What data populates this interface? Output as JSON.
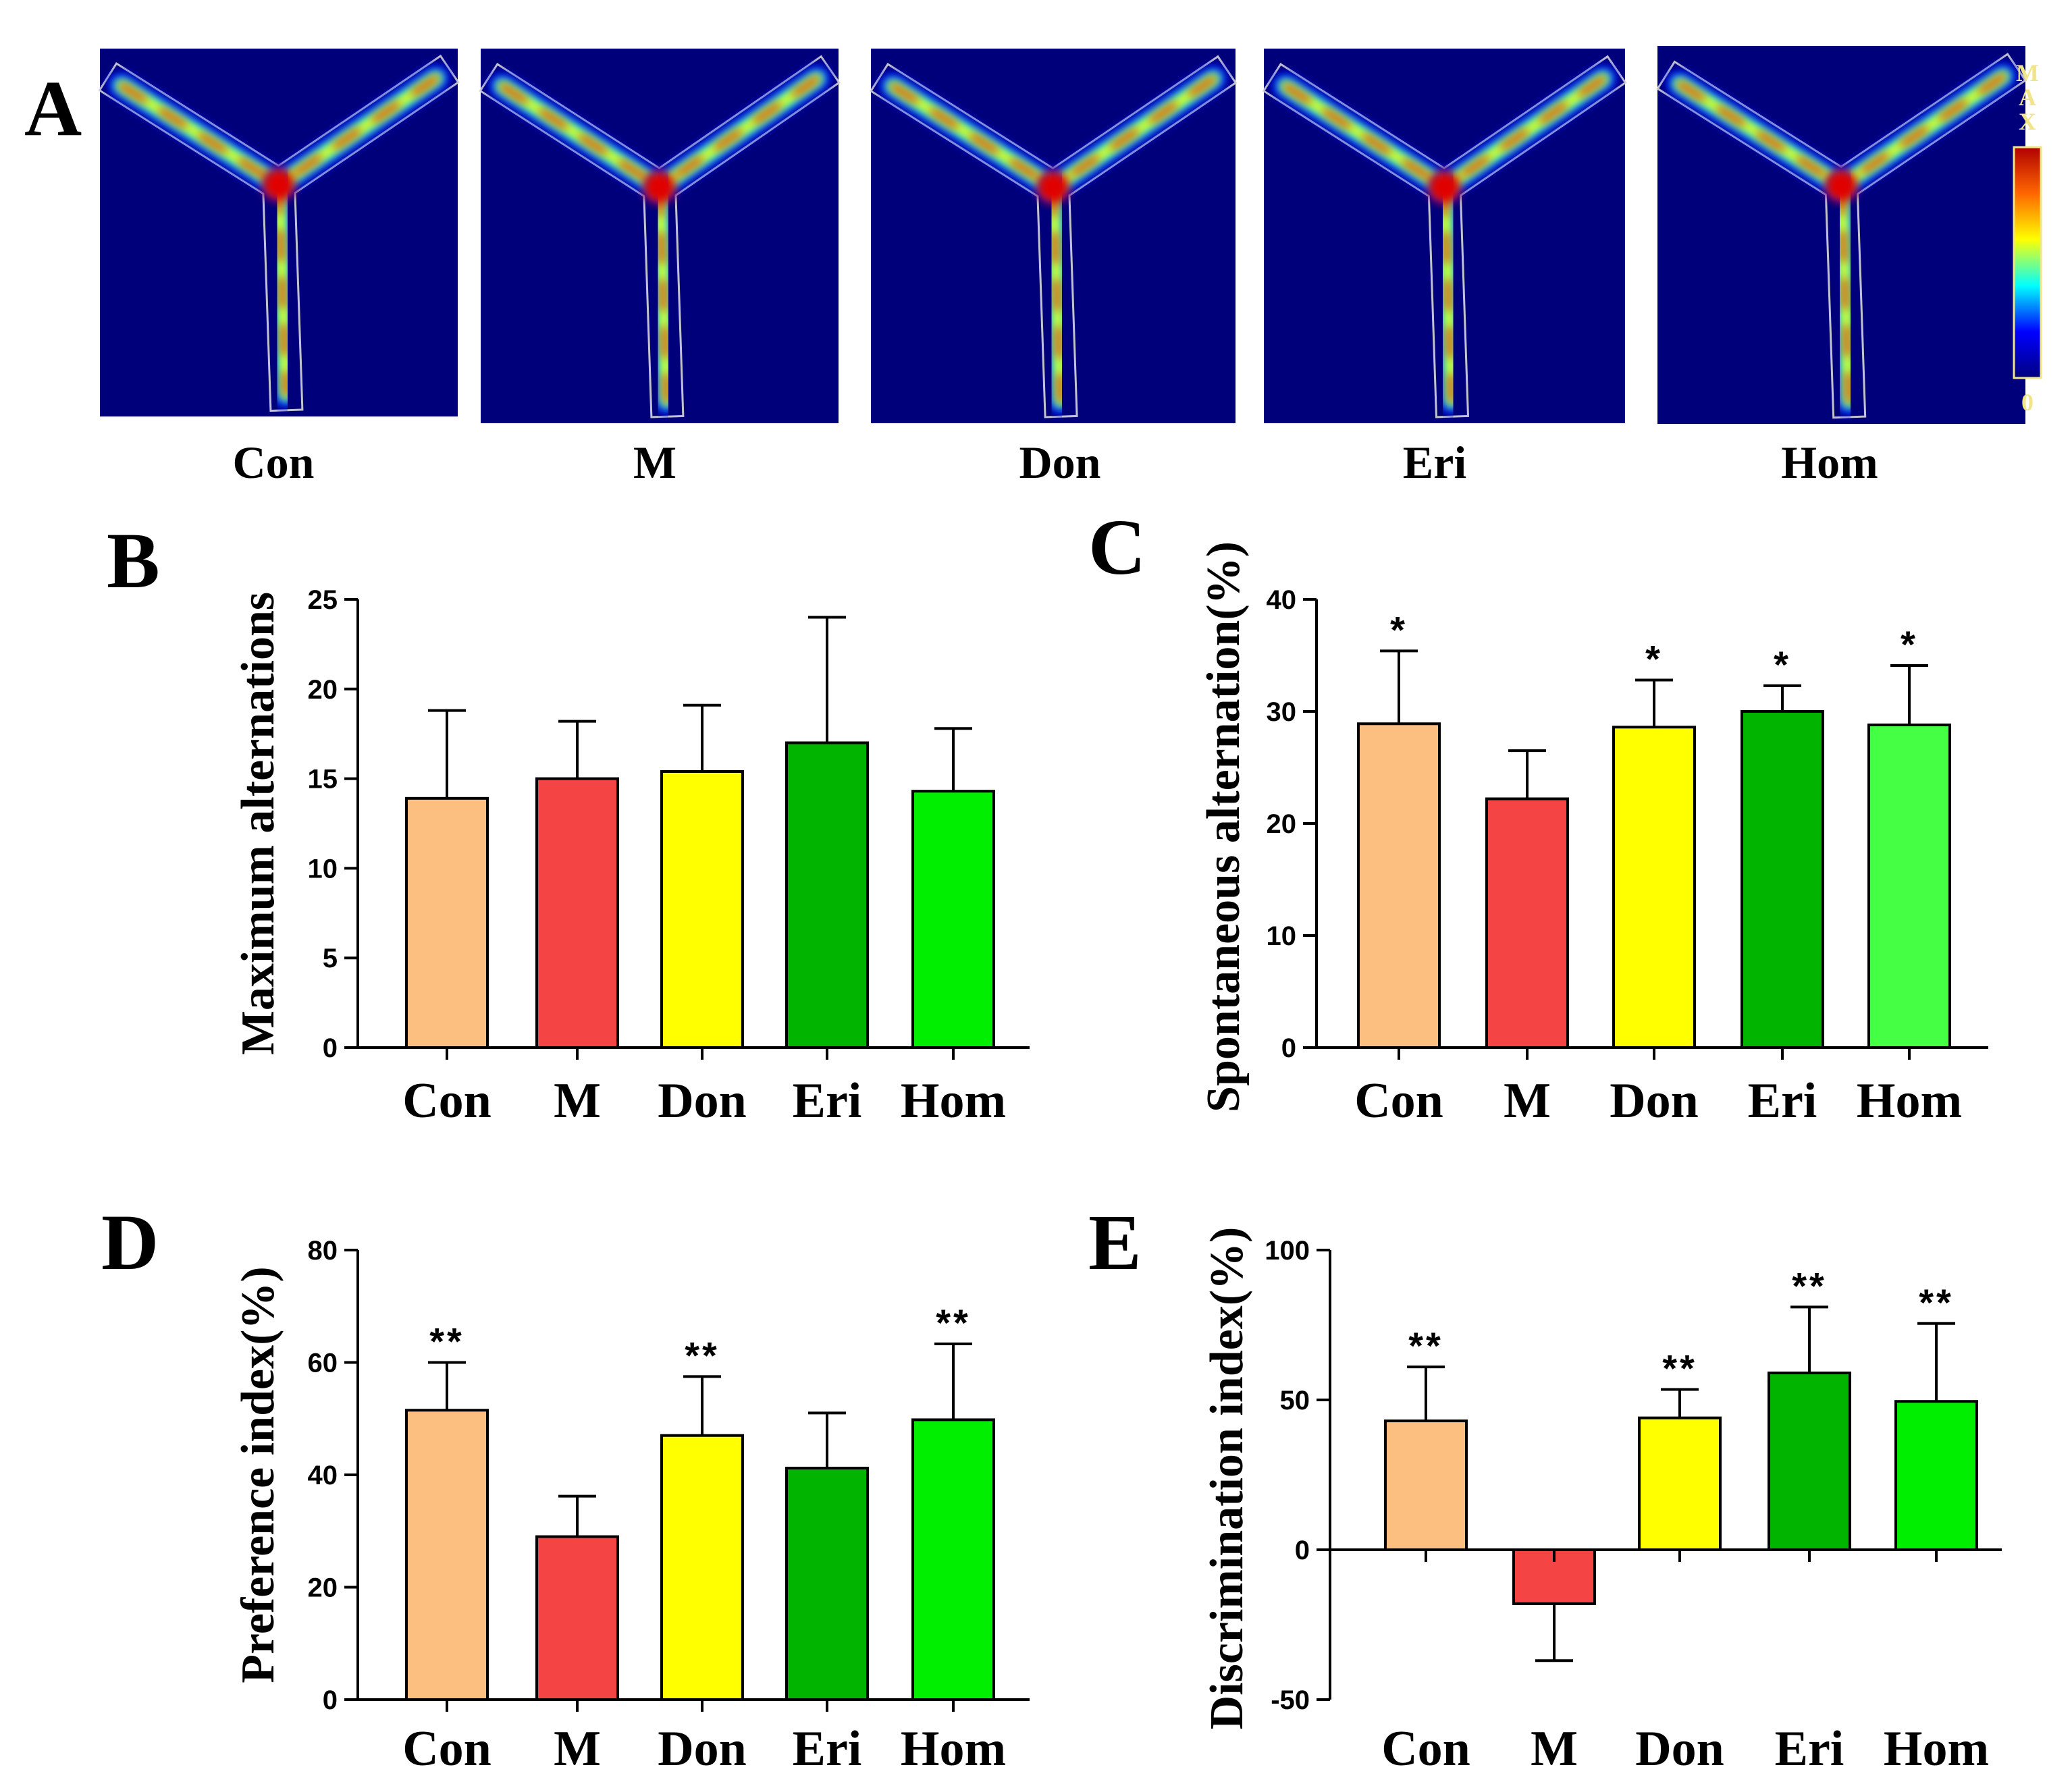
{
  "panel_a": {
    "letter": "A",
    "groups": [
      "Con",
      "M",
      "Don",
      "Eri",
      "Hom"
    ],
    "scale_max": "MAX",
    "scale_min": "0",
    "colors": {
      "background": "#00007a",
      "low": "#0000ff",
      "mid": "#00ffff",
      "mid2": "#ffff00",
      "high": "#e00000",
      "arm_outline": "#d8d8d8"
    }
  },
  "chart_data": [
    {
      "panel": "B",
      "type": "bar",
      "categories": [
        "Con",
        "M",
        "Don",
        "Eri",
        "Hom"
      ],
      "values": [
        13.9,
        15.0,
        15.4,
        17.0,
        14.3
      ],
      "errors": [
        4.9,
        3.2,
        3.7,
        7.0,
        3.5
      ],
      "significance": [
        "",
        "",
        "",
        "",
        ""
      ],
      "ylabel": "Maximum alternations",
      "ylim": [
        0,
        25
      ],
      "yticks": [
        0,
        5,
        10,
        15,
        20,
        25
      ],
      "colors": [
        "#fdbf80",
        "#f54444",
        "#ffff00",
        "#00b400",
        "#00ee00"
      ]
    },
    {
      "panel": "C",
      "type": "bar",
      "categories": [
        "Con",
        "M",
        "Don",
        "Eri",
        "Hom"
      ],
      "values": [
        28.9,
        22.2,
        28.6,
        30.0,
        28.8
      ],
      "errors": [
        6.5,
        4.3,
        4.2,
        2.3,
        5.3
      ],
      "significance": [
        "*",
        "",
        "*",
        "*",
        "*"
      ],
      "ylabel": "Spontaneous alternation(%)",
      "ylim": [
        0,
        40
      ],
      "yticks": [
        0,
        10,
        20,
        30,
        40
      ],
      "colors": [
        "#fdbf80",
        "#f54444",
        "#ffff00",
        "#00b400",
        "#44ff44"
      ]
    },
    {
      "panel": "D",
      "type": "bar",
      "categories": [
        "Con",
        "M",
        "Don",
        "Eri",
        "Hom"
      ],
      "values": [
        51.5,
        29.0,
        47.0,
        41.2,
        49.8
      ],
      "errors": [
        8.5,
        7.2,
        10.5,
        9.8,
        13.5
      ],
      "significance": [
        "**",
        "",
        "**",
        "",
        "**"
      ],
      "ylabel": "Preference index(%)",
      "ylim": [
        0,
        80
      ],
      "yticks": [
        0,
        20,
        40,
        60,
        80
      ],
      "colors": [
        "#fdbf80",
        "#f54444",
        "#ffff00",
        "#00b400",
        "#00ee00"
      ]
    },
    {
      "panel": "E",
      "type": "bar",
      "categories": [
        "Con",
        "M",
        "Don",
        "Eri",
        "Hom"
      ],
      "values": [
        43.0,
        -18.0,
        44.0,
        59.0,
        49.5
      ],
      "errors": [
        18.0,
        19.0,
        9.5,
        22.0,
        26.0
      ],
      "significance": [
        "**",
        "",
        "**",
        "**",
        "**"
      ],
      "ylabel": "Discrimination index(%)",
      "ylim": [
        -50,
        100
      ],
      "yticks": [
        -50,
        0,
        50,
        100
      ],
      "colors": [
        "#fdbf80",
        "#f54444",
        "#ffff00",
        "#00b400",
        "#00ee00"
      ]
    }
  ]
}
